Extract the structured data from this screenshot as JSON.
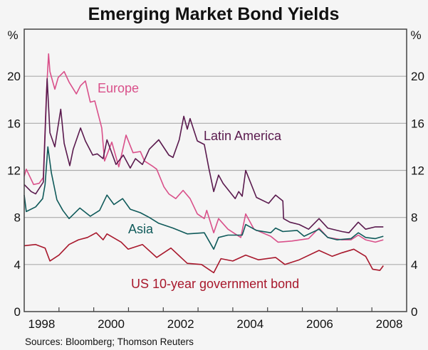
{
  "chart_data": {
    "type": "line",
    "title": "Emerging Market Bond Yields",
    "ylabel_left": "%",
    "ylabel_right": "%",
    "ylim": [
      0,
      24
    ],
    "yticks": [
      0,
      4,
      8,
      12,
      16,
      20
    ],
    "xlim": [
      1998,
      2009
    ],
    "xticks": [
      1998,
      2000,
      2002,
      2004,
      2006,
      2008
    ],
    "grid": true,
    "source": "Sources: Bloomberg; Thomson Reuters",
    "series": [
      {
        "name": "Europe",
        "color": "#d9508a",
        "x": [
          1998.0,
          1998.06,
          1998.27,
          1998.43,
          1998.55,
          1998.64,
          1998.7,
          1998.74,
          1998.88,
          1998.98,
          1999.15,
          1999.29,
          1999.5,
          1999.62,
          1999.76,
          1999.9,
          2000.03,
          2000.23,
          2000.31,
          2000.52,
          2000.72,
          2000.93,
          2001.13,
          2001.34,
          2001.46,
          2001.67,
          2001.81,
          2002.02,
          2002.16,
          2002.36,
          2002.57,
          2002.77,
          2002.98,
          2003.18,
          2003.25,
          2003.45,
          2003.59,
          2003.86,
          2004.23,
          2004.37,
          2004.61,
          2005.09,
          2005.3,
          2005.7,
          2006.18,
          2006.48,
          2006.73,
          2007.14,
          2007.4,
          2007.61,
          2007.82,
          2008.1,
          2008.33
        ],
        "y": [
          11.5,
          12.1,
          10.8,
          10.9,
          11.4,
          18.6,
          21.9,
          20.4,
          18.9,
          19.9,
          20.4,
          19.5,
          18.5,
          19.2,
          19.6,
          17.8,
          17.9,
          15.6,
          12.8,
          14.4,
          12.3,
          15.0,
          13.5,
          13.6,
          12.8,
          12.4,
          12.1,
          10.6,
          10.0,
          9.6,
          10.3,
          9.6,
          8.3,
          7.9,
          8.6,
          6.7,
          7.9,
          7.0,
          6.3,
          8.3,
          7.0,
          6.4,
          5.9,
          6.0,
          6.2,
          7.1,
          6.3,
          6.1,
          6.1,
          6.5,
          6.1,
          5.9,
          6.1
        ]
      },
      {
        "name": "Latin America",
        "color": "#5a1a4e",
        "x": [
          1998.0,
          1998.2,
          1998.33,
          1998.55,
          1998.66,
          1998.74,
          1998.88,
          1999.05,
          1999.15,
          1999.31,
          1999.41,
          1999.62,
          1999.76,
          1999.97,
          2000.1,
          2000.27,
          2000.38,
          2000.64,
          2000.85,
          2001.05,
          2001.2,
          2001.4,
          2001.6,
          2001.87,
          2002.16,
          2002.28,
          2002.46,
          2002.59,
          2002.69,
          2002.77,
          2002.98,
          2003.18,
          2003.31,
          2003.45,
          2003.59,
          2003.72,
          2004.07,
          2004.17,
          2004.27,
          2004.37,
          2004.68,
          2005.03,
          2005.23,
          2005.44,
          2005.46,
          2005.64,
          2005.91,
          2006.18,
          2006.48,
          2006.73,
          2007.14,
          2007.34,
          2007.61,
          2007.82,
          2008.1,
          2008.33
        ],
        "y": [
          10.8,
          10.2,
          10.0,
          11.0,
          19.8,
          15.2,
          14.0,
          17.2,
          14.3,
          12.4,
          13.8,
          15.6,
          14.5,
          13.3,
          13.4,
          13.0,
          14.6,
          12.5,
          13.3,
          12.2,
          13.0,
          12.5,
          13.8,
          14.6,
          13.3,
          13.1,
          14.6,
          16.6,
          15.5,
          16.4,
          14.5,
          14.2,
          12.2,
          10.2,
          11.6,
          10.9,
          9.6,
          10.2,
          9.8,
          12.0,
          9.7,
          9.2,
          9.9,
          9.4,
          7.9,
          7.6,
          7.4,
          7.0,
          7.9,
          7.1,
          6.8,
          6.7,
          7.6,
          7.0,
          7.2,
          7.2
        ]
      },
      {
        "name": "Asia",
        "color": "#0f5a5a",
        "x": [
          1998.0,
          1998.06,
          1998.33,
          1998.53,
          1998.6,
          1998.68,
          1998.78,
          1998.94,
          1999.11,
          1999.29,
          1999.6,
          1999.9,
          2000.17,
          2000.38,
          2000.58,
          2000.83,
          2001.05,
          2001.34,
          2001.6,
          2001.87,
          2002.28,
          2002.69,
          2003.18,
          2003.45,
          2003.59,
          2003.86,
          2004.27,
          2004.37,
          2004.68,
          2005.09,
          2005.23,
          2005.44,
          2005.85,
          2006.05,
          2006.48,
          2006.73,
          2007.0,
          2007.4,
          2007.61,
          2007.82,
          2008.1,
          2008.33
        ],
        "y": [
          9.9,
          8.5,
          8.9,
          9.6,
          10.8,
          14.0,
          11.8,
          9.5,
          8.6,
          7.9,
          8.8,
          8.1,
          8.6,
          9.9,
          9.1,
          9.6,
          8.7,
          8.4,
          8.0,
          7.5,
          7.1,
          6.6,
          6.7,
          5.3,
          6.3,
          6.5,
          6.5,
          7.4,
          6.9,
          6.7,
          7.1,
          6.8,
          6.9,
          6.4,
          7.0,
          6.3,
          6.1,
          6.2,
          6.7,
          6.3,
          6.2,
          6.4
        ]
      },
      {
        "name": "US 10-year government bond",
        "color": "#a8182c",
        "x": [
          1998.0,
          1998.33,
          1998.6,
          1998.74,
          1999.0,
          1999.29,
          1999.56,
          1999.82,
          2000.07,
          2000.27,
          2000.38,
          2000.79,
          2000.99,
          2001.4,
          2001.81,
          2002.22,
          2002.69,
          2003.1,
          2003.45,
          2003.66,
          2004.0,
          2004.37,
          2004.74,
          2005.23,
          2005.5,
          2005.91,
          2006.48,
          2006.86,
          2007.14,
          2007.48,
          2007.82,
          2008.02,
          2008.23,
          2008.33
        ],
        "y": [
          5.6,
          5.7,
          5.4,
          4.3,
          4.8,
          5.7,
          6.1,
          6.3,
          6.7,
          6.1,
          6.6,
          5.9,
          5.3,
          5.7,
          4.6,
          5.4,
          4.1,
          4.0,
          3.3,
          4.5,
          4.3,
          4.8,
          4.4,
          4.6,
          4.0,
          4.4,
          5.2,
          4.7,
          5.0,
          5.3,
          4.7,
          3.6,
          3.5,
          3.9
        ]
      }
    ]
  }
}
